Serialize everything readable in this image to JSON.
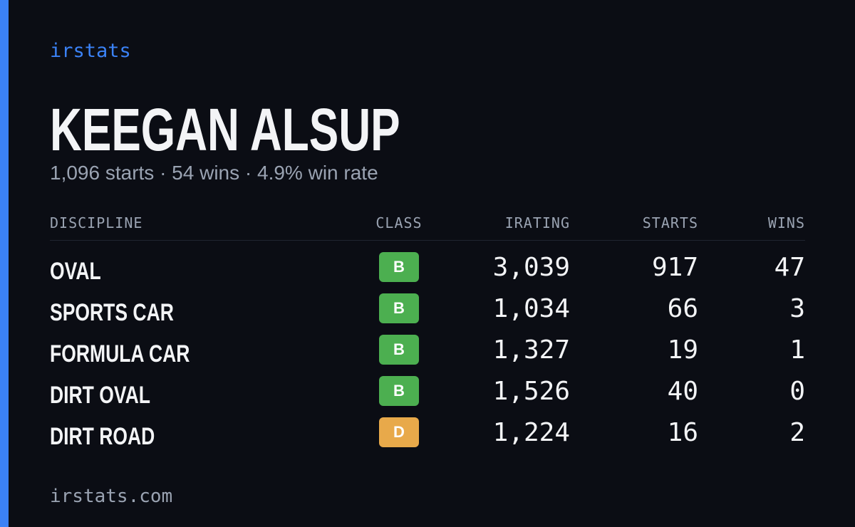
{
  "header": {
    "brand": "irstats",
    "name": "KEEGAN ALSUP",
    "summary": "1,096 starts · 54 wins · 4.9% win rate"
  },
  "table": {
    "columns": [
      "DISCIPLINE",
      "CLASS",
      "IRATING",
      "STARTS",
      "WINS"
    ],
    "rows": [
      {
        "discipline": "OVAL",
        "class": "B",
        "class_color": "#4caf50",
        "irating": "3,039",
        "starts": "917",
        "wins": "47"
      },
      {
        "discipline": "SPORTS CAR",
        "class": "B",
        "class_color": "#4caf50",
        "irating": "1,034",
        "starts": "66",
        "wins": "3"
      },
      {
        "discipline": "FORMULA CAR",
        "class": "B",
        "class_color": "#4caf50",
        "irating": "1,327",
        "starts": "19",
        "wins": "1"
      },
      {
        "discipline": "DIRT OVAL",
        "class": "B",
        "class_color": "#4caf50",
        "irating": "1,526",
        "starts": "40",
        "wins": "0"
      },
      {
        "discipline": "DIRT ROAD",
        "class": "D",
        "class_color": "#e8a94a",
        "irating": "1,224",
        "starts": "16",
        "wins": "2"
      }
    ]
  },
  "footer": {
    "site": "irstats.com"
  }
}
